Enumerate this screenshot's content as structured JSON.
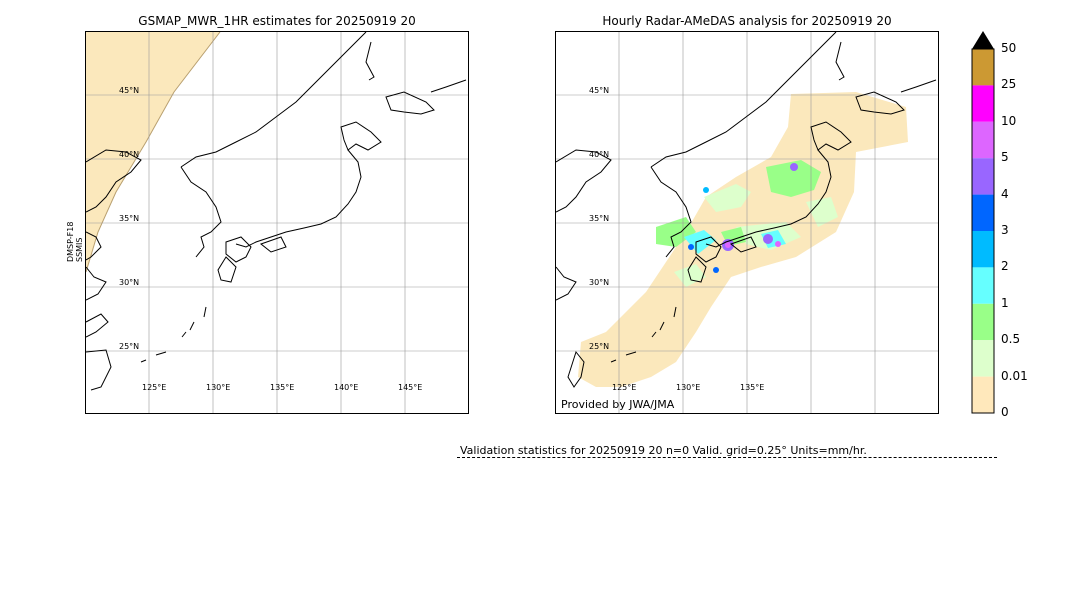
{
  "left_panel": {
    "title": "GSMAP_MWR_1HR estimates for 20250919 20",
    "satellite_label_line1": "DMSP-F18",
    "satellite_label_line2": "SSMIS",
    "lat_labels": [
      "45°N",
      "40°N",
      "35°N",
      "30°N",
      "25°N"
    ],
    "lon_labels": [
      "125°E",
      "130°E",
      "135°E",
      "140°E",
      "145°E"
    ]
  },
  "right_panel": {
    "title": "Hourly Radar-AMeDAS analysis for 20250919 20",
    "lat_labels": [
      "45°N",
      "40°N",
      "35°N",
      "30°N",
      "25°N"
    ],
    "lon_labels": [
      "125°E",
      "130°E",
      "135°E"
    ],
    "credit": "Provided by JWA/JMA"
  },
  "colorbar": {
    "labels": [
      "50",
      "25",
      "10",
      "5",
      "4",
      "3",
      "2",
      "1",
      "0.5",
      "0.01",
      "0"
    ],
    "colors": [
      "#cc9933",
      "#ff00ff",
      "#dd66ff",
      "#9966ff",
      "#0066ff",
      "#00bbff",
      "#66ffff",
      "#99ff88",
      "#ddffcc",
      "#ffe8bb"
    ],
    "extend_color": "#000000"
  },
  "validation": {
    "text": "Validation statistics for 20250919 20  n=0 Valid. grid=0.25° Units=mm/hr."
  }
}
